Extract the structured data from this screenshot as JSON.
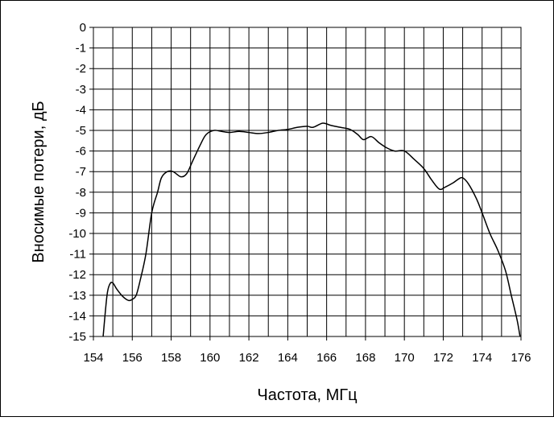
{
  "chart_data": {
    "type": "line",
    "title": "",
    "xlabel": "Частота, МГц",
    "ylabel": "Вносимые потери, дБ",
    "xlim": [
      154,
      176
    ],
    "ylim": [
      -15,
      0
    ],
    "xticks": [
      154,
      156,
      158,
      160,
      162,
      164,
      166,
      168,
      170,
      172,
      174,
      176
    ],
    "yticks": [
      0,
      -1,
      -2,
      -3,
      -4,
      -5,
      -6,
      -7,
      -8,
      -9,
      -10,
      -11,
      -12,
      -13,
      -14,
      -15
    ],
    "x_minor_step": 1,
    "grid": true,
    "legend": "none",
    "line_color": "#000000",
    "series": [
      {
        "points": [
          [
            154.5,
            -15.0
          ],
          [
            154.7,
            -13.0
          ],
          [
            154.85,
            -12.45
          ],
          [
            155.0,
            -12.4
          ],
          [
            155.2,
            -12.7
          ],
          [
            155.5,
            -13.05
          ],
          [
            155.8,
            -13.25
          ],
          [
            156.0,
            -13.2
          ],
          [
            156.2,
            -13.0
          ],
          [
            156.4,
            -12.3
          ],
          [
            156.7,
            -11.0
          ],
          [
            157.0,
            -9.0
          ],
          [
            157.3,
            -8.0
          ],
          [
            157.5,
            -7.3
          ],
          [
            157.8,
            -7.0
          ],
          [
            158.1,
            -7.0
          ],
          [
            158.5,
            -7.25
          ],
          [
            158.8,
            -7.1
          ],
          [
            159.1,
            -6.5
          ],
          [
            159.5,
            -5.7
          ],
          [
            159.8,
            -5.2
          ],
          [
            160.2,
            -5.0
          ],
          [
            160.6,
            -5.05
          ],
          [
            161.0,
            -5.1
          ],
          [
            161.5,
            -5.05
          ],
          [
            162.0,
            -5.1
          ],
          [
            162.5,
            -5.15
          ],
          [
            163.0,
            -5.1
          ],
          [
            163.5,
            -5.0
          ],
          [
            164.0,
            -4.95
          ],
          [
            164.5,
            -4.85
          ],
          [
            165.0,
            -4.8
          ],
          [
            165.3,
            -4.85
          ],
          [
            165.8,
            -4.65
          ],
          [
            166.2,
            -4.75
          ],
          [
            166.7,
            -4.85
          ],
          [
            167.2,
            -4.95
          ],
          [
            167.6,
            -5.2
          ],
          [
            167.9,
            -5.45
          ],
          [
            168.3,
            -5.3
          ],
          [
            168.7,
            -5.6
          ],
          [
            169.1,
            -5.85
          ],
          [
            169.5,
            -6.0
          ],
          [
            170.0,
            -6.0
          ],
          [
            170.5,
            -6.4
          ],
          [
            171.0,
            -6.85
          ],
          [
            171.4,
            -7.4
          ],
          [
            171.8,
            -7.85
          ],
          [
            172.1,
            -7.75
          ],
          [
            172.5,
            -7.55
          ],
          [
            172.8,
            -7.35
          ],
          [
            173.0,
            -7.3
          ],
          [
            173.3,
            -7.6
          ],
          [
            173.7,
            -8.3
          ],
          [
            174.0,
            -9.0
          ],
          [
            174.4,
            -10.0
          ],
          [
            174.8,
            -10.8
          ],
          [
            175.2,
            -11.8
          ],
          [
            175.5,
            -13.0
          ],
          [
            175.8,
            -14.2
          ],
          [
            175.95,
            -15.0
          ]
        ]
      }
    ]
  }
}
